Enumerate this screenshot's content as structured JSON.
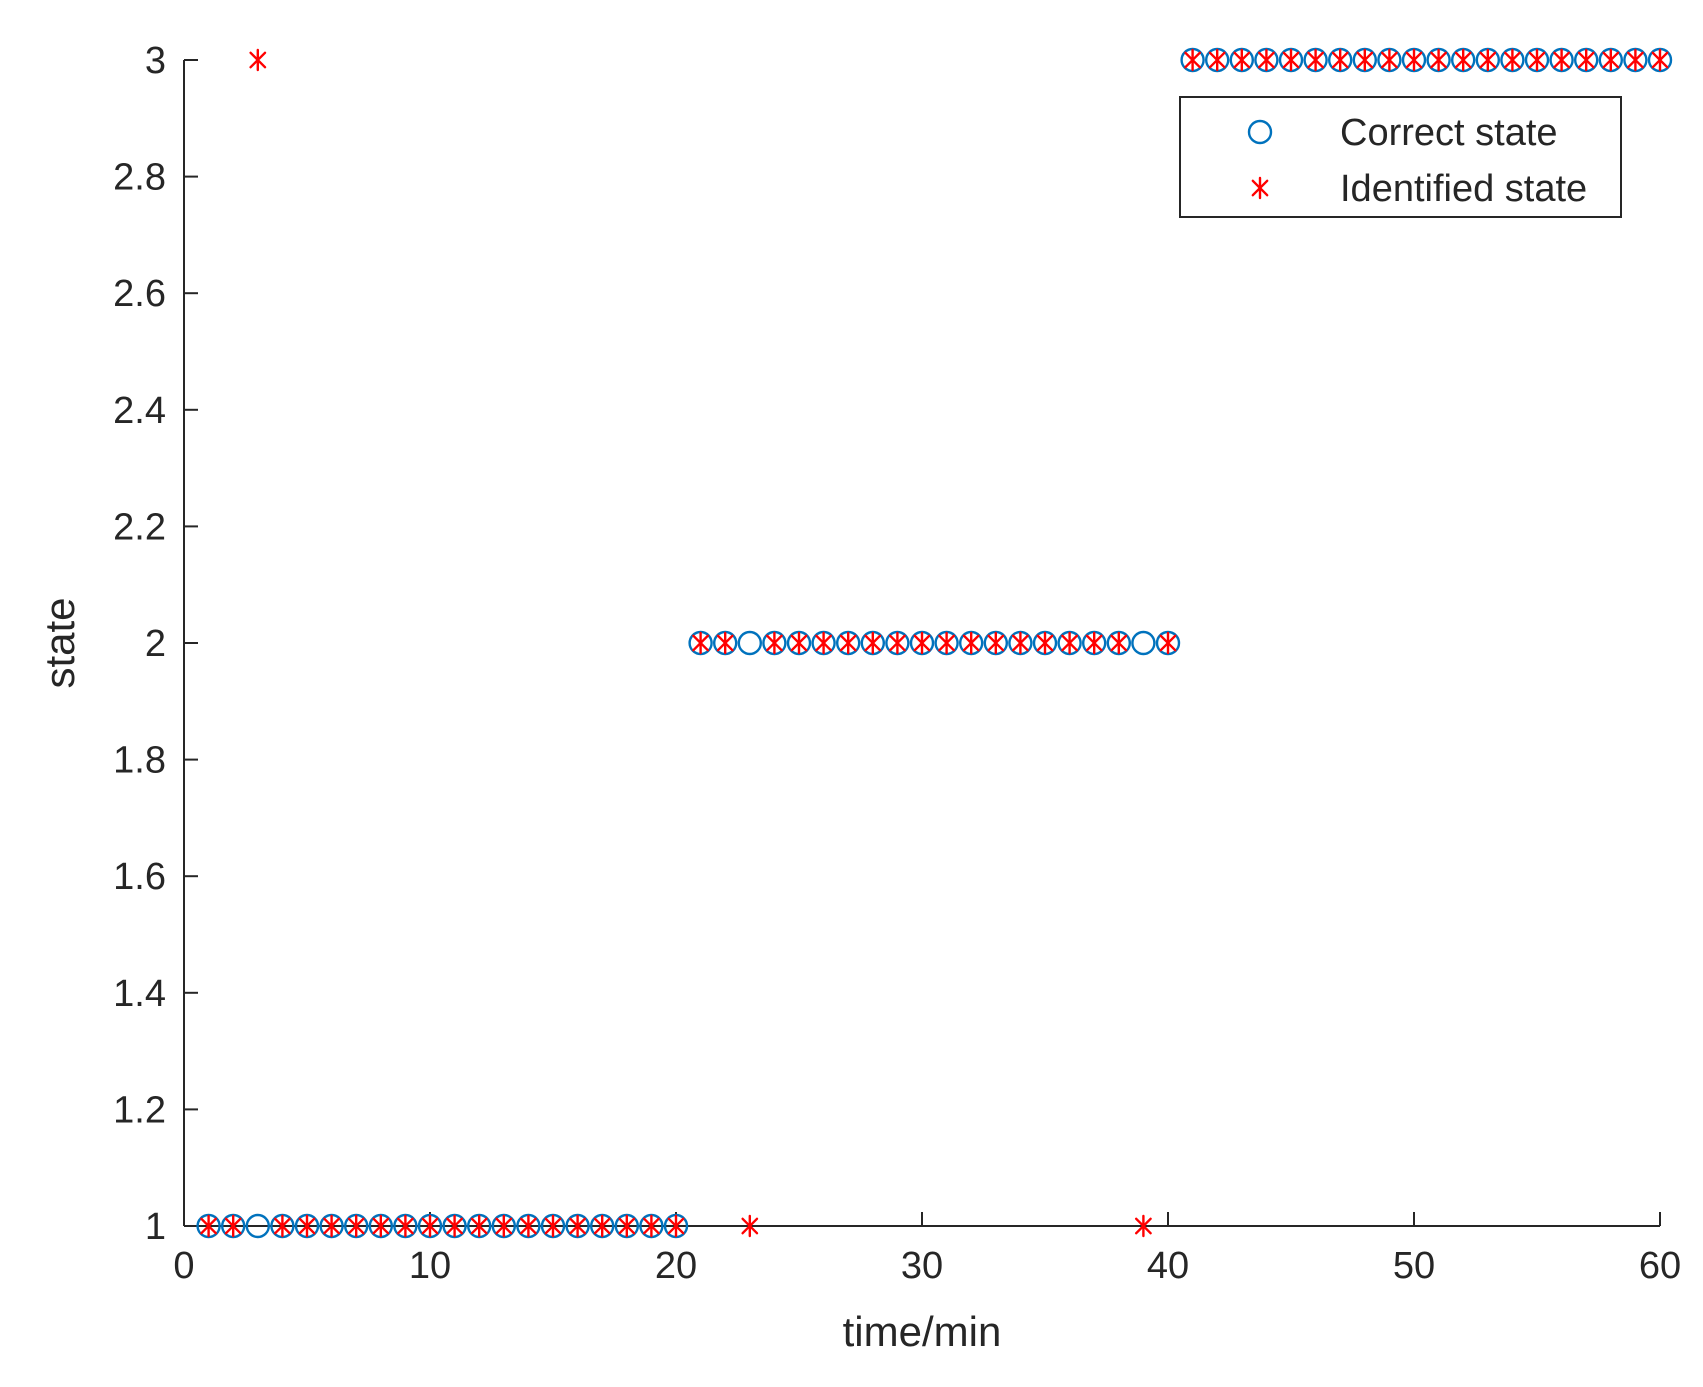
{
  "colors": {
    "correct": "#0072BD",
    "identified": "#FF0000",
    "axis": "#262626",
    "background": "#ffffff"
  },
  "chart_data": {
    "type": "scatter",
    "title": "",
    "xlabel": "time/min",
    "ylabel": "state",
    "xlim": [
      0,
      60
    ],
    "ylim": [
      1,
      3
    ],
    "xticks": [
      "0",
      "10",
      "20",
      "30",
      "40",
      "50",
      "60"
    ],
    "yticks": [
      "1",
      "1.2",
      "1.4",
      "1.6",
      "1.8",
      "2",
      "2.2",
      "2.4",
      "2.6",
      "2.8",
      "3"
    ],
    "grid": false,
    "legend_position": "top-right",
    "x": [
      1,
      2,
      3,
      4,
      5,
      6,
      7,
      8,
      9,
      10,
      11,
      12,
      13,
      14,
      15,
      16,
      17,
      18,
      19,
      20,
      21,
      22,
      23,
      24,
      25,
      26,
      27,
      28,
      29,
      30,
      31,
      32,
      33,
      34,
      35,
      36,
      37,
      38,
      39,
      40,
      41,
      42,
      43,
      44,
      45,
      46,
      47,
      48,
      49,
      50,
      51,
      52,
      53,
      54,
      55,
      56,
      57,
      58,
      59,
      60
    ],
    "series": [
      {
        "name": "Correct state",
        "marker": "circle",
        "values": [
          1,
          1,
          1,
          1,
          1,
          1,
          1,
          1,
          1,
          1,
          1,
          1,
          1,
          1,
          1,
          1,
          1,
          1,
          1,
          1,
          2,
          2,
          2,
          2,
          2,
          2,
          2,
          2,
          2,
          2,
          2,
          2,
          2,
          2,
          2,
          2,
          2,
          2,
          2,
          2,
          3,
          3,
          3,
          3,
          3,
          3,
          3,
          3,
          3,
          3,
          3,
          3,
          3,
          3,
          3,
          3,
          3,
          3,
          3,
          3
        ]
      },
      {
        "name": "Identified state",
        "marker": "asterisk",
        "values": [
          1,
          1,
          3,
          1,
          1,
          1,
          1,
          1,
          1,
          1,
          1,
          1,
          1,
          1,
          1,
          1,
          1,
          1,
          1,
          1,
          2,
          2,
          1,
          2,
          2,
          2,
          2,
          2,
          2,
          2,
          2,
          2,
          2,
          2,
          2,
          2,
          2,
          2,
          1,
          2,
          3,
          3,
          3,
          3,
          3,
          3,
          3,
          3,
          3,
          3,
          3,
          3,
          3,
          3,
          3,
          3,
          3,
          3,
          3,
          3
        ]
      }
    ]
  }
}
